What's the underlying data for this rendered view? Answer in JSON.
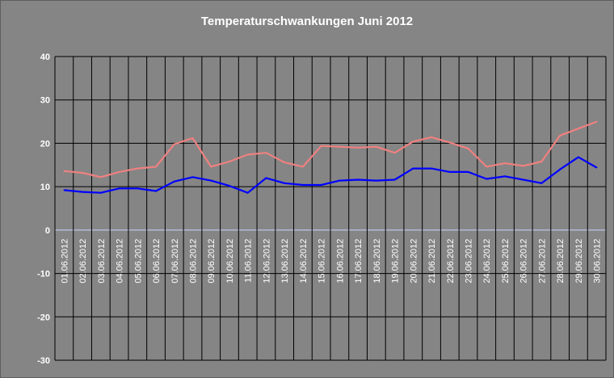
{
  "chart_data": {
    "type": "line",
    "title": "Temperaturschwankungen Juni 2012",
    "xlabel": "",
    "ylabel": "",
    "ylim": [
      -30,
      40
    ],
    "yticks": [
      40,
      30,
      20,
      10,
      0,
      -10,
      -20,
      -30
    ],
    "grid": true,
    "legend": "none",
    "categories": [
      "01.06.2012",
      "02.06.2012",
      "03.06.2012",
      "04.06.2012",
      "05.06.2012",
      "06.06.2012",
      "07.06.2012",
      "08.06.2012",
      "09.06.2012",
      "10.06.2012",
      "11.06.2012",
      "12.06.2012",
      "13.06.2012",
      "14.06.2012",
      "15.06.2012",
      "16.06.2012",
      "17.06.2012",
      "18.06.2012",
      "19.06.2012",
      "20.06.2012",
      "21.06.2012",
      "22.06.2012",
      "23.06.2012",
      "24.06.2012",
      "25.06.2012",
      "26.06.2012",
      "27.06.2012",
      "28.06.2012",
      "29.06.2012",
      "30.06.2012"
    ],
    "series": [
      {
        "color": "#f08080",
        "values": [
          13.6,
          13.2,
          12.2,
          13.4,
          14.2,
          14.6,
          19.8,
          21.2,
          14.6,
          15.8,
          17.4,
          17.8,
          15.6,
          14.6,
          19.4,
          19.2,
          19.0,
          19.2,
          17.8,
          20.4,
          21.4,
          20.2,
          18.8,
          14.6,
          15.4,
          14.8,
          15.8,
          21.8,
          23.4,
          25.0
        ]
      },
      {
        "color": "#0000ff",
        "values": [
          9.2,
          8.8,
          8.6,
          9.6,
          9.6,
          9.0,
          11.2,
          12.2,
          11.4,
          10.2,
          8.6,
          12.0,
          10.8,
          10.4,
          10.4,
          11.4,
          11.6,
          11.4,
          11.6,
          14.2,
          14.2,
          13.4,
          13.4,
          11.8,
          12.4,
          11.6,
          10.8,
          14.0,
          16.8,
          14.4
        ]
      }
    ]
  }
}
